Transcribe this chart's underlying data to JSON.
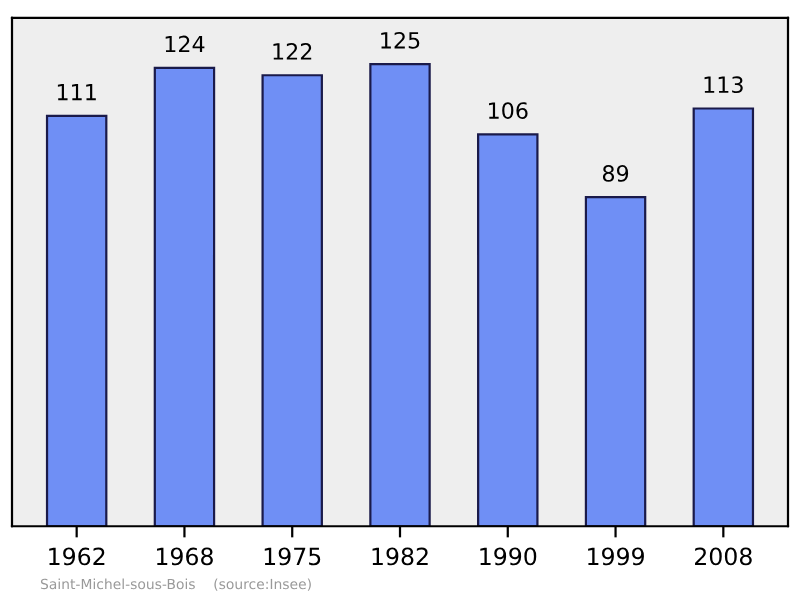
{
  "chart_data": {
    "type": "bar",
    "categories": [
      "1962",
      "1968",
      "1975",
      "1982",
      "1990",
      "1999",
      "2008"
    ],
    "values": [
      111,
      124,
      122,
      125,
      106,
      89,
      113
    ],
    "color": "#6f8ff5",
    "data_labels": true,
    "grid": false,
    "legend": false,
    "annotations": [
      "Saint-Michel-sous-Bois    (source:Insee)"
    ]
  }
}
